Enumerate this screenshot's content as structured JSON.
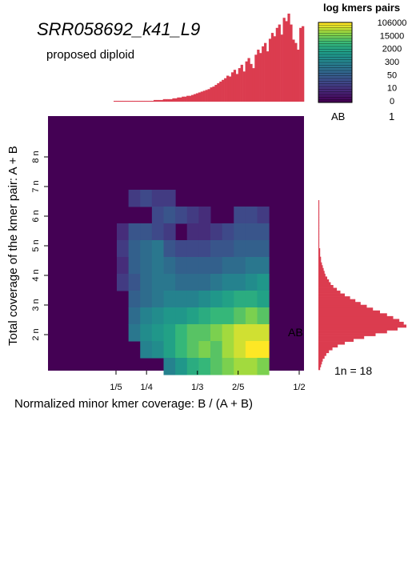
{
  "chart_data": {
    "type": "heatmap",
    "title": "SRR058692_k41_L9",
    "subtitle": "proposed diploid",
    "xlabel": "Normalized minor kmer coverage: B / (A + B)",
    "ylabel": "Total coverage of the kmer pair: A + B",
    "x_ticks": [
      "1/5",
      "1/4",
      "1/3",
      "2/5",
      "1/2"
    ],
    "y_ticks": [
      "2 n",
      "3 n",
      "4 n",
      "5 n",
      "6 n",
      "7 n",
      "8 n"
    ],
    "xlim": [
      0,
      0.5
    ],
    "ylim_n": [
      0,
      9
    ],
    "legend": {
      "title": "log kmers pairs",
      "ticks": [
        "106000",
        "15000",
        "2000",
        "300",
        "50",
        "10",
        "0"
      ]
    },
    "annotation": "AB",
    "smudge_legend": [
      {
        "label": "AB",
        "value": "1"
      }
    ],
    "coverage_label": "1n =  18",
    "heatmap": {
      "x_bins": 16,
      "y_bins": 16,
      "grid": [
        [
          0,
          0,
          0,
          0,
          0,
          0,
          0,
          0,
          0,
          0,
          0,
          0,
          0,
          0,
          0,
          0
        ],
        [
          0,
          0,
          0,
          0,
          0,
          0,
          0,
          0,
          0,
          0,
          0,
          0,
          0,
          0,
          0,
          0
        ],
        [
          0,
          0,
          0,
          0,
          0,
          0,
          0,
          0,
          0,
          0,
          0,
          0,
          0,
          0,
          0,
          0
        ],
        [
          0,
          0,
          0,
          0,
          0,
          0,
          0,
          0,
          0,
          0,
          0,
          0,
          0,
          0,
          0,
          0
        ],
        [
          0,
          0,
          0,
          0,
          0,
          0,
          0,
          0,
          0,
          0,
          0,
          0,
          0,
          0,
          0,
          0
        ],
        [
          0,
          0,
          0,
          0,
          0,
          0,
          0,
          0,
          0,
          0,
          0,
          0,
          0,
          0,
          0,
          0
        ],
        [
          0,
          0,
          0,
          0,
          0,
          0,
          0,
          0,
          0,
          0,
          0,
          0,
          0,
          0,
          0,
          0
        ],
        [
          0,
          0,
          0,
          0,
          0,
          0,
          0,
          0,
          0,
          0,
          0,
          0,
          0,
          0,
          0,
          0
        ],
        [
          0,
          0,
          0,
          0,
          0,
          0,
          0,
          0,
          0,
          0,
          0,
          0,
          0,
          0,
          0,
          0
        ],
        [
          0,
          0,
          0,
          0,
          0,
          0,
          0,
          0,
          0,
          0,
          0,
          0,
          0,
          0,
          0,
          0
        ],
        [
          0,
          0,
          0,
          0,
          0,
          0,
          0,
          0,
          0,
          0,
          0,
          0,
          0,
          0,
          0,
          0
        ],
        [
          0,
          0,
          0,
          0,
          0,
          0,
          0,
          0,
          0,
          0,
          0,
          0,
          0,
          0,
          0,
          0
        ],
        [
          0,
          0,
          0,
          0,
          0,
          0,
          0,
          0,
          0,
          0,
          0,
          0,
          0,
          0,
          0,
          0
        ],
        [
          0,
          0,
          0,
          0,
          0,
          0,
          0,
          0,
          0,
          0,
          0,
          0,
          0,
          0,
          0,
          0
        ],
        [
          0,
          0,
          0,
          0,
          0,
          0,
          0,
          0,
          0,
          0,
          0,
          0,
          0,
          0,
          0,
          0
        ],
        [
          0,
          0,
          0,
          0,
          0,
          0,
          0,
          0,
          0,
          0,
          0,
          0,
          0,
          0,
          0,
          0
        ]
      ],
      "cells": [
        [
          4,
          10,
          0.2
        ],
        [
          5,
          10,
          0.25
        ],
        [
          6,
          10,
          0.2
        ],
        [
          7,
          10,
          0.2
        ],
        [
          6,
          9,
          0.25
        ],
        [
          7,
          9,
          0.3
        ],
        [
          8,
          9,
          0.25
        ],
        [
          9,
          9,
          0.2
        ],
        [
          10,
          9,
          0.15
        ],
        [
          13,
          9,
          0.25
        ],
        [
          14,
          9,
          0.25
        ],
        [
          15,
          9,
          0.2
        ],
        [
          3,
          8,
          0.15
        ],
        [
          4,
          8,
          0.3
        ],
        [
          5,
          8,
          0.3
        ],
        [
          6,
          8,
          0.25
        ],
        [
          7,
          8,
          0.2
        ],
        [
          9,
          8,
          0.15
        ],
        [
          10,
          8,
          0.15
        ],
        [
          11,
          8,
          0.2
        ],
        [
          12,
          8,
          0.25
        ],
        [
          13,
          8,
          0.3
        ],
        [
          14,
          8,
          0.3
        ],
        [
          15,
          8,
          0.3
        ],
        [
          3,
          7,
          0.2
        ],
        [
          4,
          7,
          0.35
        ],
        [
          5,
          7,
          0.4
        ],
        [
          6,
          7,
          0.45
        ],
        [
          7,
          7,
          0.3
        ],
        [
          8,
          7,
          0.25
        ],
        [
          9,
          7,
          0.25
        ],
        [
          10,
          7,
          0.25
        ],
        [
          11,
          7,
          0.3
        ],
        [
          12,
          7,
          0.3
        ],
        [
          13,
          7,
          0.35
        ],
        [
          14,
          7,
          0.35
        ],
        [
          15,
          7,
          0.35
        ],
        [
          3,
          6,
          0.15
        ],
        [
          4,
          6,
          0.35
        ],
        [
          5,
          6,
          0.4
        ],
        [
          6,
          6,
          0.45
        ],
        [
          7,
          6,
          0.4
        ],
        [
          8,
          6,
          0.35
        ],
        [
          9,
          6,
          0.35
        ],
        [
          10,
          6,
          0.35
        ],
        [
          11,
          6,
          0.35
        ],
        [
          12,
          6,
          0.4
        ],
        [
          13,
          6,
          0.4
        ],
        [
          14,
          6,
          0.45
        ],
        [
          15,
          6,
          0.45
        ],
        [
          3,
          5,
          0.2
        ],
        [
          4,
          5,
          0.3
        ],
        [
          5,
          5,
          0.4
        ],
        [
          6,
          5,
          0.45
        ],
        [
          7,
          5,
          0.45
        ],
        [
          8,
          5,
          0.4
        ],
        [
          9,
          5,
          0.4
        ],
        [
          10,
          5,
          0.4
        ],
        [
          11,
          5,
          0.45
        ],
        [
          12,
          5,
          0.5
        ],
        [
          13,
          5,
          0.5
        ],
        [
          14,
          5,
          0.55
        ],
        [
          15,
          5,
          0.6
        ],
        [
          4,
          4,
          0.35
        ],
        [
          5,
          4,
          0.4
        ],
        [
          6,
          4,
          0.45
        ],
        [
          7,
          4,
          0.5
        ],
        [
          8,
          4,
          0.5
        ],
        [
          9,
          4,
          0.5
        ],
        [
          10,
          4,
          0.55
        ],
        [
          11,
          4,
          0.6
        ],
        [
          12,
          4,
          0.65
        ],
        [
          13,
          4,
          0.7
        ],
        [
          14,
          4,
          0.7
        ],
        [
          15,
          4,
          0.65
        ],
        [
          4,
          3,
          0.4
        ],
        [
          5,
          3,
          0.5
        ],
        [
          6,
          3,
          0.55
        ],
        [
          7,
          3,
          0.6
        ],
        [
          8,
          3,
          0.6
        ],
        [
          9,
          3,
          0.65
        ],
        [
          10,
          3,
          0.7
        ],
        [
          11,
          3,
          0.75
        ],
        [
          12,
          3,
          0.75
        ],
        [
          13,
          3,
          0.8
        ],
        [
          14,
          3,
          0.85
        ],
        [
          15,
          3,
          0.8
        ],
        [
          4,
          2,
          0.45
        ],
        [
          5,
          2,
          0.55
        ],
        [
          6,
          2,
          0.6
        ],
        [
          7,
          2,
          0.65
        ],
        [
          8,
          2,
          0.75
        ],
        [
          9,
          2,
          0.8
        ],
        [
          10,
          2,
          0.8
        ],
        [
          11,
          2,
          0.85
        ],
        [
          12,
          2,
          0.9
        ],
        [
          13,
          2,
          0.95
        ],
        [
          14,
          2,
          0.95
        ],
        [
          15,
          2,
          0.95
        ],
        [
          5,
          1,
          0.5
        ],
        [
          6,
          1,
          0.55
        ],
        [
          7,
          1,
          0.65
        ],
        [
          8,
          1,
          0.75
        ],
        [
          9,
          1,
          0.8
        ],
        [
          10,
          1,
          0.85
        ],
        [
          11,
          1,
          0.8
        ],
        [
          12,
          1,
          0.9
        ],
        [
          13,
          1,
          0.95
        ],
        [
          14,
          1,
          1.0
        ],
        [
          15,
          1,
          1.0
        ],
        [
          7,
          0,
          0.5
        ],
        [
          8,
          0,
          0.6
        ],
        [
          9,
          0,
          0.7
        ],
        [
          10,
          0,
          0.75
        ],
        [
          11,
          0,
          0.8
        ],
        [
          12,
          0,
          0.85
        ],
        [
          13,
          0,
          0.9
        ],
        [
          14,
          0,
          0.9
        ],
        [
          15,
          0,
          0.85
        ]
      ]
    },
    "top_histogram": [
      1,
      1,
      1,
      1,
      1,
      1,
      1,
      1,
      1,
      1,
      1,
      1,
      1,
      1,
      1,
      1,
      1,
      2,
      2,
      2,
      2,
      3,
      3,
      3,
      3,
      4,
      4,
      5,
      5,
      6,
      6,
      7,
      7,
      8,
      9,
      10,
      11,
      12,
      13,
      14,
      15,
      17,
      18,
      20,
      22,
      24,
      26,
      28,
      31,
      30,
      35,
      38,
      33,
      40,
      44,
      36,
      48,
      52,
      45,
      40,
      56,
      62,
      58,
      66,
      70,
      60,
      75,
      82,
      78,
      88,
      92,
      80,
      100,
      96,
      105,
      92,
      74,
      70,
      62,
      88,
      90
    ],
    "right_histogram": [
      2,
      3,
      4,
      5,
      7,
      9,
      12,
      16,
      22,
      30,
      40,
      52,
      65,
      78,
      90,
      100,
      97,
      92,
      85,
      78,
      70,
      62,
      55,
      48,
      42,
      36,
      30,
      25,
      21,
      17,
      14,
      12,
      10,
      8,
      7,
      6,
      5,
      4,
      3,
      3,
      2,
      2,
      2,
      1,
      1,
      1,
      1,
      1,
      1,
      1,
      1,
      1,
      1,
      1,
      1,
      1,
      1,
      1,
      1,
      1
    ],
    "colors": {
      "background": "#440154",
      "histogram": "#db3c4f"
    }
  }
}
